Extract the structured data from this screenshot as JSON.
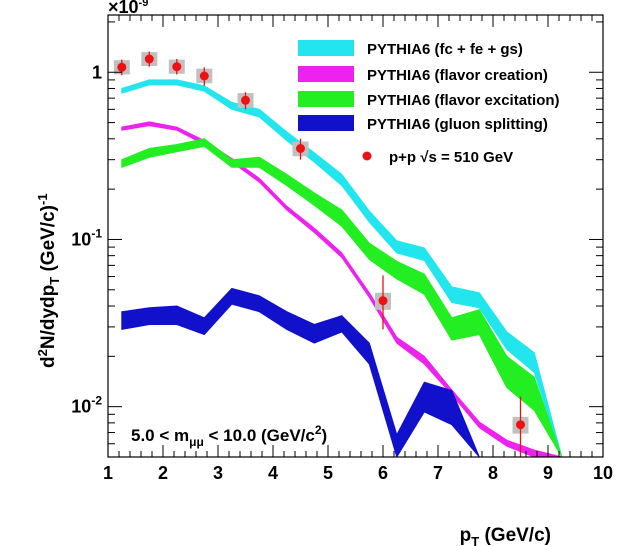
{
  "chart_data": {
    "type": "line",
    "title": "",
    "xlabel": "p_T (GeV/c)",
    "ylabel": "d²N/dydp_T (GeV/c)⁻¹",
    "xlim": [
      1,
      10
    ],
    "ylim": [
      0.005,
      2.2
    ],
    "yscale": "log",
    "y_multiplier_label": "×10",
    "y_multiplier_exponent": "-9",
    "x_ticks": [
      "1",
      "2",
      "3",
      "4",
      "5",
      "6",
      "7",
      "8",
      "9",
      "10"
    ],
    "y_ticks": [
      {
        "value": 1,
        "mantissa": "1",
        "exponent": ""
      },
      {
        "value": 0.1,
        "mantissa": "10",
        "exponent": "-1"
      },
      {
        "value": 0.01,
        "mantissa": "10",
        "exponent": "-2"
      }
    ],
    "annotation": {
      "prefix": "5.0 < m",
      "subscript": "μμ",
      "middle": " < 10.0 (GeV/c",
      "superscript": "2",
      "suffix": ")"
    },
    "legend_placement": "top-right",
    "grid": false,
    "x": [
      1.25,
      1.75,
      2.25,
      2.75,
      3.25,
      3.75,
      4.25,
      4.75,
      5.25,
      5.75,
      6.25,
      6.75,
      7.25,
      7.75,
      8.25,
      8.75,
      9.25
    ],
    "series": [
      {
        "name": "PYTHIA6 (fc + fe + gs)",
        "color": "#22e5ee",
        "kind": "band",
        "lower": [
          0.75,
          0.84,
          0.84,
          0.77,
          0.6,
          0.54,
          0.39,
          0.29,
          0.21,
          0.127,
          0.083,
          0.075,
          0.042,
          0.039,
          0.022,
          0.016,
          0.005
        ],
        "upper": [
          0.8,
          0.9,
          0.9,
          0.83,
          0.66,
          0.6,
          0.44,
          0.33,
          0.245,
          0.148,
          0.098,
          0.089,
          0.052,
          0.048,
          0.028,
          0.021,
          0.005
        ]
      },
      {
        "name": "PYTHIA6 (flavor creation)",
        "color": "#ee22ee",
        "kind": "band",
        "lower": [
          0.45,
          0.48,
          0.45,
          0.37,
          0.29,
          0.22,
          0.15,
          0.11,
          0.078,
          0.045,
          0.024,
          0.018,
          0.0118,
          0.0075,
          0.0058,
          0.005,
          0.005
        ],
        "upper": [
          0.47,
          0.505,
          0.47,
          0.39,
          0.305,
          0.232,
          0.158,
          0.117,
          0.083,
          0.048,
          0.026,
          0.02,
          0.0126,
          0.0081,
          0.0063,
          0.0055,
          0.005
        ]
      },
      {
        "name": "PYTHIA6 (flavor excitation)",
        "color": "#22ee22",
        "kind": "band",
        "lower": [
          0.27,
          0.31,
          0.335,
          0.36,
          0.27,
          0.27,
          0.21,
          0.16,
          0.12,
          0.076,
          0.058,
          0.047,
          0.025,
          0.027,
          0.013,
          0.0095,
          0.005
        ],
        "upper": [
          0.3,
          0.35,
          0.37,
          0.4,
          0.3,
          0.31,
          0.245,
          0.19,
          0.15,
          0.095,
          0.074,
          0.062,
          0.034,
          0.038,
          0.02,
          0.015,
          0.005
        ]
      },
      {
        "name": "PYTHIA6 (gluon splitting)",
        "color": "#1111cc",
        "kind": "band",
        "lower": [
          0.029,
          0.031,
          0.031,
          0.027,
          0.041,
          0.037,
          0.029,
          0.024,
          0.028,
          0.018,
          0.005,
          0.0093,
          0.0078,
          0.005,
          0.005,
          0.005,
          0.005
        ],
        "upper": [
          0.037,
          0.039,
          0.04,
          0.034,
          0.051,
          0.046,
          0.037,
          0.031,
          0.035,
          0.024,
          0.0068,
          0.014,
          0.0125,
          0.005,
          0.005,
          0.005,
          0.005
        ]
      }
    ],
    "data_points": {
      "name": "p+p  √s = 510 GeV",
      "color": "#ee1111",
      "syst_color": "#c0c0c0",
      "points": [
        {
          "x": 1.25,
          "y": 1.07,
          "ylo": 0.96,
          "yhi": 1.19,
          "slo": 0.97,
          "shi": 1.18
        },
        {
          "x": 1.75,
          "y": 1.2,
          "ylo": 1.08,
          "yhi": 1.33,
          "slo": 1.09,
          "shi": 1.32
        },
        {
          "x": 2.25,
          "y": 1.08,
          "ylo": 0.97,
          "yhi": 1.2,
          "slo": 0.98,
          "shi": 1.19
        },
        {
          "x": 2.75,
          "y": 0.95,
          "ylo": 0.83,
          "yhi": 1.07,
          "slo": 0.86,
          "shi": 1.05
        },
        {
          "x": 3.5,
          "y": 0.68,
          "ylo": 0.6,
          "yhi": 0.76,
          "slo": 0.61,
          "shi": 0.75
        },
        {
          "x": 4.5,
          "y": 0.35,
          "ylo": 0.3,
          "yhi": 0.4,
          "slo": 0.315,
          "shi": 0.385
        },
        {
          "x": 6.0,
          "y": 0.043,
          "ylo": 0.029,
          "yhi": 0.061,
          "slo": 0.038,
          "shi": 0.048
        },
        {
          "x": 8.5,
          "y": 0.0078,
          "ylo": 0.005,
          "yhi": 0.0115,
          "slo": 0.0069,
          "shi": 0.0087
        }
      ]
    }
  }
}
